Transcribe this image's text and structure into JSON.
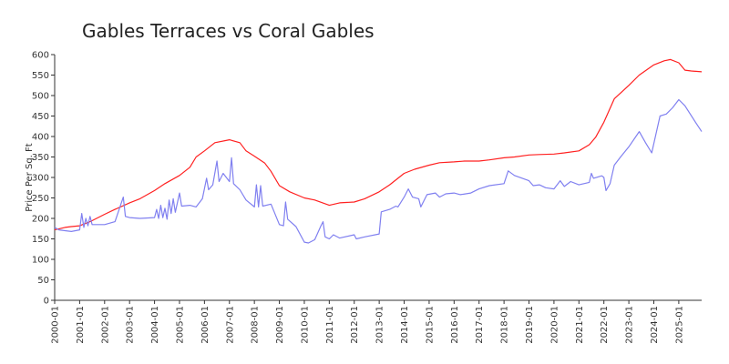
{
  "chart_data": {
    "type": "line",
    "title": "Gables Terraces vs Coral Gables",
    "xlabel": "",
    "ylabel": "Price Per Sq. Ft",
    "ylim": [
      0,
      600
    ],
    "yticks": [
      0,
      50,
      100,
      150,
      200,
      250,
      300,
      350,
      400,
      450,
      500,
      550,
      600
    ],
    "xlim": [
      "2000-01",
      "2025-12"
    ],
    "xticks": [
      "2000-01",
      "2001-01",
      "2002-01",
      "2003-01",
      "2004-01",
      "2005-01",
      "2006-01",
      "2007-01",
      "2008-01",
      "2009-01",
      "2010-01",
      "2011-01",
      "2012-01",
      "2013-01",
      "2014-01",
      "2015-01",
      "2016-01",
      "2017-01",
      "2018-01",
      "2019-01",
      "2020-01",
      "2021-01",
      "2022-01",
      "2023-01",
      "2024-01",
      "2025-01"
    ],
    "grid": false,
    "legend": "none",
    "series": [
      {
        "color": "#ff2020",
        "points": [
          [
            "2000-01",
            172
          ],
          [
            "2000-06",
            178
          ],
          [
            "2000-09",
            180
          ],
          [
            "2001-01",
            182
          ],
          [
            "2001-06",
            192
          ],
          [
            "2002-01",
            210
          ],
          [
            "2002-06",
            222
          ],
          [
            "2003-01",
            238
          ],
          [
            "2003-06",
            248
          ],
          [
            "2004-01",
            268
          ],
          [
            "2004-06",
            285
          ],
          [
            "2005-01",
            305
          ],
          [
            "2005-06",
            325
          ],
          [
            "2005-09",
            350
          ],
          [
            "2006-01",
            365
          ],
          [
            "2006-06",
            385
          ],
          [
            "2007-01",
            392
          ],
          [
            "2007-06",
            385
          ],
          [
            "2007-09",
            365
          ],
          [
            "2008-01",
            352
          ],
          [
            "2008-06",
            335
          ],
          [
            "2008-09",
            315
          ],
          [
            "2009-01",
            280
          ],
          [
            "2009-06",
            265
          ],
          [
            "2010-01",
            250
          ],
          [
            "2010-06",
            245
          ],
          [
            "2011-01",
            232
          ],
          [
            "2011-06",
            238
          ],
          [
            "2012-01",
            240
          ],
          [
            "2012-06",
            248
          ],
          [
            "2013-01",
            265
          ],
          [
            "2013-06",
            282
          ],
          [
            "2014-01",
            310
          ],
          [
            "2014-06",
            320
          ],
          [
            "2015-01",
            330
          ],
          [
            "2015-06",
            336
          ],
          [
            "2016-01",
            338
          ],
          [
            "2016-06",
            340
          ],
          [
            "2017-01",
            340
          ],
          [
            "2017-06",
            343
          ],
          [
            "2018-01",
            348
          ],
          [
            "2018-06",
            350
          ],
          [
            "2019-01",
            355
          ],
          [
            "2019-06",
            356
          ],
          [
            "2020-01",
            357
          ],
          [
            "2020-06",
            360
          ],
          [
            "2021-01",
            365
          ],
          [
            "2021-06",
            380
          ],
          [
            "2021-09",
            398
          ],
          [
            "2022-01",
            435
          ],
          [
            "2022-06",
            492
          ],
          [
            "2023-01",
            525
          ],
          [
            "2023-06",
            550
          ],
          [
            "2024-01",
            575
          ],
          [
            "2024-06",
            585
          ],
          [
            "2024-09",
            588
          ],
          [
            "2025-01",
            580
          ],
          [
            "2025-04",
            562
          ],
          [
            "2025-07",
            560
          ],
          [
            "2025-12",
            558
          ]
        ]
      },
      {
        "color": "#8080f0",
        "points": [
          [
            "2000-01",
            178
          ],
          [
            "2000-03",
            172
          ],
          [
            "2000-06",
            170
          ],
          [
            "2000-09",
            168
          ],
          [
            "2001-01",
            172
          ],
          [
            "2001-02",
            212
          ],
          [
            "2001-03",
            178
          ],
          [
            "2001-04",
            200
          ],
          [
            "2001-05",
            182
          ],
          [
            "2001-06",
            205
          ],
          [
            "2001-07",
            185
          ],
          [
            "2002-01",
            185
          ],
          [
            "2002-06",
            192
          ],
          [
            "2002-10",
            252
          ],
          [
            "2002-11",
            205
          ],
          [
            "2003-01",
            202
          ],
          [
            "2003-06",
            200
          ],
          [
            "2004-01",
            202
          ],
          [
            "2004-02",
            222
          ],
          [
            "2004-03",
            200
          ],
          [
            "2004-04",
            232
          ],
          [
            "2004-05",
            202
          ],
          [
            "2004-06",
            225
          ],
          [
            "2004-07",
            198
          ],
          [
            "2004-08",
            245
          ],
          [
            "2004-09",
            212
          ],
          [
            "2004-10",
            248
          ],
          [
            "2004-11",
            215
          ],
          [
            "2005-01",
            262
          ],
          [
            "2005-02",
            230
          ],
          [
            "2005-06",
            232
          ],
          [
            "2005-09",
            228
          ],
          [
            "2005-12",
            248
          ],
          [
            "2006-02",
            298
          ],
          [
            "2006-03",
            270
          ],
          [
            "2006-05",
            282
          ],
          [
            "2006-07",
            340
          ],
          [
            "2006-08",
            290
          ],
          [
            "2006-10",
            310
          ],
          [
            "2007-01",
            290
          ],
          [
            "2007-02",
            348
          ],
          [
            "2007-03",
            285
          ],
          [
            "2007-06",
            270
          ],
          [
            "2007-09",
            245
          ],
          [
            "2008-01",
            228
          ],
          [
            "2008-02",
            282
          ],
          [
            "2008-03",
            228
          ],
          [
            "2008-04",
            280
          ],
          [
            "2008-05",
            230
          ],
          [
            "2008-09",
            235
          ],
          [
            "2009-01",
            185
          ],
          [
            "2009-03",
            182
          ],
          [
            "2009-04",
            240
          ],
          [
            "2009-05",
            198
          ],
          [
            "2009-09",
            180
          ],
          [
            "2010-01",
            142
          ],
          [
            "2010-03",
            140
          ],
          [
            "2010-06",
            148
          ],
          [
            "2010-09",
            182
          ],
          [
            "2010-10",
            192
          ],
          [
            "2010-11",
            155
          ],
          [
            "2011-01",
            150
          ],
          [
            "2011-03",
            160
          ],
          [
            "2011-06",
            152
          ],
          [
            "2012-01",
            160
          ],
          [
            "2012-02",
            150
          ],
          [
            "2012-06",
            155
          ],
          [
            "2013-01",
            162
          ],
          [
            "2013-02",
            216
          ],
          [
            "2013-06",
            222
          ],
          [
            "2013-09",
            230
          ],
          [
            "2013-10",
            228
          ],
          [
            "2014-01",
            252
          ],
          [
            "2014-03",
            272
          ],
          [
            "2014-05",
            252
          ],
          [
            "2014-08",
            248
          ],
          [
            "2014-09",
            228
          ],
          [
            "2014-12",
            258
          ],
          [
            "2015-04",
            262
          ],
          [
            "2015-06",
            252
          ],
          [
            "2015-09",
            260
          ],
          [
            "2016-01",
            262
          ],
          [
            "2016-04",
            258
          ],
          [
            "2016-09",
            262
          ],
          [
            "2017-01",
            272
          ],
          [
            "2017-06",
            280
          ],
          [
            "2018-01",
            285
          ],
          [
            "2018-03",
            316
          ],
          [
            "2018-06",
            305
          ],
          [
            "2019-01",
            292
          ],
          [
            "2019-03",
            280
          ],
          [
            "2019-06",
            282
          ],
          [
            "2019-09",
            275
          ],
          [
            "2020-01",
            272
          ],
          [
            "2020-04",
            292
          ],
          [
            "2020-06",
            278
          ],
          [
            "2020-09",
            290
          ],
          [
            "2021-01",
            282
          ],
          [
            "2021-06",
            288
          ],
          [
            "2021-07",
            310
          ],
          [
            "2021-08",
            298
          ],
          [
            "2021-12",
            304
          ],
          [
            "2022-01",
            300
          ],
          [
            "2022-02",
            268
          ],
          [
            "2022-04",
            285
          ],
          [
            "2022-06",
            330
          ],
          [
            "2022-09",
            350
          ],
          [
            "2023-01",
            375
          ],
          [
            "2023-06",
            412
          ],
          [
            "2023-09",
            385
          ],
          [
            "2023-12",
            360
          ],
          [
            "2024-04",
            450
          ],
          [
            "2024-07",
            455
          ],
          [
            "2024-10",
            470
          ],
          [
            "2025-01",
            490
          ],
          [
            "2025-04",
            475
          ],
          [
            "2025-09",
            435
          ],
          [
            "2025-12",
            412
          ]
        ]
      }
    ]
  }
}
